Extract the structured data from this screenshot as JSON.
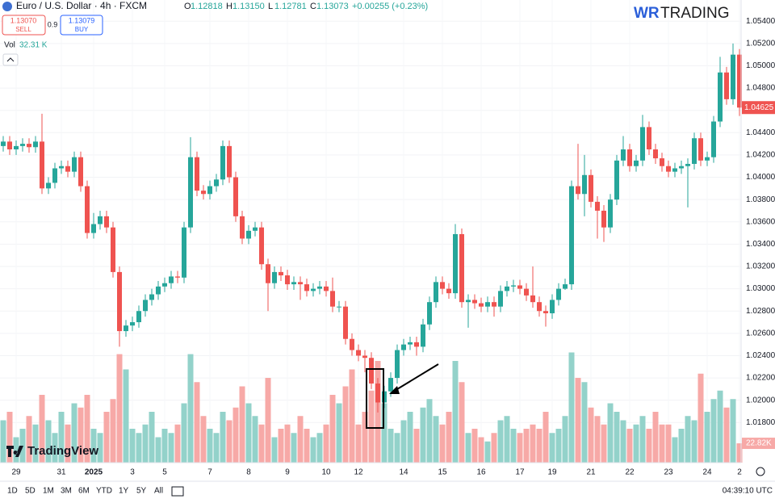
{
  "header": {
    "symbol": "Euro / U.S. Dollar · 4h · FXCM",
    "ohlc_keys": [
      "O",
      "H",
      "L",
      "C"
    ],
    "ohlc_values": [
      "1.12818",
      "1.13150",
      "1.12781",
      "1.13073"
    ],
    "change": "+0.00255 (+0.23%)",
    "sell_price": "1.13070",
    "sell": "SELL",
    "spread": "0.9",
    "buy_price": "1.13079",
    "buy": "BUY",
    "vol_name": "Vol",
    "vol_value": "32.31 K",
    "logo_a": "WR",
    "logo_b": "TRADING",
    "watermark": "TradingView"
  },
  "toolbar": {
    "ranges": [
      "1D",
      "5D",
      "1M",
      "3M",
      "6M",
      "YTD",
      "1Y",
      "5Y",
      "All"
    ],
    "clock": "04:39:10 UTC"
  },
  "chart_data": {
    "type": "candlestick",
    "categories": [
      null,
      null,
      "29",
      null,
      null,
      null,
      null,
      null,
      null,
      "31",
      null,
      null,
      null,
      null,
      "2025",
      null,
      null,
      null,
      null,
      null,
      "3",
      null,
      null,
      null,
      null,
      "5",
      null,
      null,
      null,
      null,
      null,
      null,
      "7",
      null,
      null,
      null,
      null,
      null,
      "8",
      null,
      null,
      null,
      null,
      null,
      "9",
      null,
      null,
      null,
      null,
      null,
      "10",
      null,
      null,
      null,
      null,
      "12",
      null,
      null,
      null,
      null,
      null,
      null,
      "14",
      null,
      null,
      null,
      null,
      null,
      "15",
      null,
      null,
      null,
      null,
      null,
      "16",
      null,
      null,
      null,
      null,
      null,
      "17",
      null,
      null,
      null,
      null,
      "19",
      null,
      null,
      null,
      null,
      null,
      "21",
      null,
      null,
      null,
      null,
      null,
      "22",
      null,
      null,
      null,
      null,
      null,
      "23",
      null,
      null,
      null,
      null,
      null,
      "24",
      null,
      null,
      null,
      null,
      "2"
    ],
    "open": [
      1.0428,
      1.0432,
      1.0425,
      1.0428,
      1.043,
      1.0427,
      1.0432,
      1.039,
      1.0395,
      1.0408,
      1.041,
      1.0405,
      1.0418,
      1.0392,
      1.035,
      1.0358,
      1.0365,
      1.0355,
      1.0315,
      1.0262,
      1.0267,
      1.027,
      1.028,
      1.029,
      1.0295,
      1.0302,
      1.0305,
      1.0311,
      1.031,
      1.0355,
      1.0418,
      1.0388,
      1.0385,
      1.0392,
      1.0398,
      1.0428,
      1.04,
      1.0365,
      1.0345,
      1.0352,
      1.0355,
      1.0322,
      1.0305,
      1.0315,
      1.0312,
      1.0304,
      1.0306,
      1.0304,
      1.0298,
      1.03,
      1.0302,
      1.0298,
      1.0284,
      1.0284,
      1.0255,
      1.0245,
      1.024,
      1.0238,
      1.0215,
      1.0198,
      1.0208,
      1.022,
      1.0245,
      1.025,
      1.0252,
      1.0248,
      1.0268,
      1.0288,
      1.0306,
      1.03,
      1.0296,
      1.0349,
      1.0288,
      1.029,
      1.0287,
      1.0284,
      1.0288,
      1.0284,
      1.0298,
      1.0302,
      1.0303,
      1.03,
      1.0294,
      1.0288,
      1.028,
      1.0278,
      1.029,
      1.03,
      1.0304,
      1.0392,
      1.0385,
      1.0402,
      1.0378,
      1.037,
      1.0355,
      1.038,
      1.0415,
      1.0425,
      1.041,
      1.0415,
      1.0445,
      1.0425,
      1.0417,
      1.041,
      1.0405,
      1.0408,
      1.041,
      1.0412,
      1.0435,
      1.0415,
      1.0418,
      1.045,
      1.0494,
      1.047,
      1.051
    ],
    "high": [
      1.0437,
      1.0437,
      1.0433,
      1.0435,
      1.0435,
      1.0437,
      1.0457,
      1.04,
      1.0413,
      1.0415,
      1.0415,
      1.0423,
      1.0423,
      1.0397,
      1.0368,
      1.037,
      1.037,
      1.036,
      1.032,
      1.0272,
      1.0275,
      1.0285,
      1.0295,
      1.03,
      1.0307,
      1.031,
      1.0316,
      1.0316,
      1.036,
      1.0436,
      1.0423,
      1.0393,
      1.0397,
      1.0403,
      1.0433,
      1.0433,
      1.0405,
      1.037,
      1.0357,
      1.036,
      1.036,
      1.0327,
      1.032,
      1.032,
      1.0317,
      1.0311,
      1.0311,
      1.0309,
      1.0305,
      1.0307,
      1.0307,
      1.031,
      1.0289,
      1.0289,
      1.026,
      1.025,
      1.0245,
      1.0243,
      1.022,
      1.0213,
      1.0225,
      1.025,
      1.0255,
      1.0257,
      1.0257,
      1.0273,
      1.0293,
      1.0311,
      1.0311,
      1.0305,
      1.0358,
      1.0354,
      1.0295,
      1.0295,
      1.0292,
      1.0293,
      1.0293,
      1.0303,
      1.0307,
      1.0308,
      1.0308,
      1.0305,
      1.032,
      1.0293,
      1.0285,
      1.0295,
      1.0305,
      1.0309,
      1.0397,
      1.043,
      1.042,
      1.0407,
      1.0383,
      1.0375,
      1.0385,
      1.042,
      1.0437,
      1.043,
      1.042,
      1.0456,
      1.045,
      1.043,
      1.0422,
      1.0415,
      1.0413,
      1.0415,
      1.0417,
      1.044,
      1.044,
      1.0423,
      1.0455,
      1.0508,
      1.0499,
      1.052,
      1.0515
    ],
    "low": [
      1.0423,
      1.042,
      1.042,
      1.0423,
      1.0422,
      1.0422,
      1.0385,
      1.0385,
      1.039,
      1.0403,
      1.04,
      1.04,
      1.0387,
      1.0345,
      1.0345,
      1.0353,
      1.035,
      1.031,
      1.0248,
      1.0257,
      1.0262,
      1.0265,
      1.0275,
      1.0285,
      1.029,
      1.0297,
      1.03,
      1.0305,
      1.0305,
      1.035,
      1.0383,
      1.038,
      1.038,
      1.0387,
      1.0393,
      1.0395,
      1.036,
      1.034,
      1.034,
      1.0347,
      1.0317,
      1.028,
      1.03,
      1.0307,
      1.0299,
      1.0299,
      1.029,
      1.0293,
      1.0293,
      1.0295,
      1.0293,
      1.0279,
      1.0279,
      1.025,
      1.024,
      1.0235,
      1.0225,
      1.021,
      1.0189,
      1.0193,
      1.0203,
      1.0215,
      1.024,
      1.0245,
      1.024,
      1.0243,
      1.0263,
      1.0283,
      1.0295,
      1.0291,
      1.0291,
      1.0283,
      1.0265,
      1.0282,
      1.0279,
      1.0279,
      1.0275,
      1.0279,
      1.0293,
      1.0297,
      1.0295,
      1.0289,
      1.0283,
      1.0275,
      1.0266,
      1.0273,
      1.0285,
      1.0299,
      1.0299,
      1.038,
      1.0365,
      1.0373,
      1.0345,
      1.0342,
      1.035,
      1.0375,
      1.041,
      1.0405,
      1.0405,
      1.041,
      1.042,
      1.0412,
      1.0405,
      1.04,
      1.04,
      1.0403,
      1.0373,
      1.0407,
      1.041,
      1.041,
      1.0413,
      1.0445,
      1.0465,
      1.0465,
      1.0455
    ],
    "close": [
      1.0432,
      1.0425,
      1.0428,
      1.043,
      1.0427,
      1.0432,
      1.039,
      1.0395,
      1.0408,
      1.041,
      1.0405,
      1.0418,
      1.0392,
      1.035,
      1.0358,
      1.0365,
      1.0355,
      1.0315,
      1.0262,
      1.0267,
      1.027,
      1.028,
      1.029,
      1.0295,
      1.0302,
      1.0305,
      1.0311,
      1.031,
      1.0355,
      1.0418,
      1.0388,
      1.0385,
      1.0392,
      1.0398,
      1.0428,
      1.04,
      1.0365,
      1.0345,
      1.0352,
      1.0355,
      1.0322,
      1.0305,
      1.0315,
      1.0312,
      1.0304,
      1.0306,
      1.0304,
      1.0298,
      1.03,
      1.0302,
      1.0298,
      1.0284,
      1.0284,
      1.0255,
      1.0245,
      1.024,
      1.0238,
      1.0215,
      1.0198,
      1.0208,
      1.022,
      1.0245,
      1.025,
      1.0252,
      1.0248,
      1.0268,
      1.0288,
      1.0306,
      1.03,
      1.0296,
      1.0349,
      1.0288,
      1.029,
      1.0287,
      1.0284,
      1.0288,
      1.0284,
      1.0298,
      1.0302,
      1.0303,
      1.03,
      1.0294,
      1.0288,
      1.028,
      1.0278,
      1.029,
      1.03,
      1.0304,
      1.0392,
      1.0385,
      1.0402,
      1.0378,
      1.037,
      1.0355,
      1.038,
      1.0415,
      1.0425,
      1.041,
      1.0415,
      1.0445,
      1.0425,
      1.0417,
      1.041,
      1.0405,
      1.0408,
      1.041,
      1.0412,
      1.0435,
      1.0415,
      1.0418,
      1.045,
      1.0494,
      1.047,
      1.051,
      1.04625
    ],
    "volume": [
      50,
      60,
      30,
      40,
      55,
      45,
      80,
      50,
      35,
      60,
      45,
      70,
      65,
      80,
      40,
      35,
      60,
      75,
      128,
      110,
      40,
      35,
      45,
      60,
      30,
      40,
      35,
      45,
      70,
      128,
      95,
      55,
      40,
      35,
      60,
      50,
      65,
      90,
      70,
      55,
      45,
      100,
      30,
      40,
      45,
      35,
      55,
      40,
      30,
      35,
      45,
      80,
      70,
      90,
      110,
      45,
      60,
      85,
      120,
      70,
      40,
      35,
      50,
      60,
      40,
      65,
      75,
      55,
      45,
      60,
      120,
      95,
      35,
      40,
      30,
      25,
      35,
      50,
      55,
      40,
      35,
      40,
      45,
      40,
      60,
      35,
      40,
      55,
      130,
      100,
      95,
      65,
      55,
      45,
      70,
      60,
      50,
      40,
      45,
      55,
      40,
      60,
      45,
      45,
      30,
      40,
      55,
      50,
      105,
      60,
      75,
      85,
      65,
      75,
      22.82
    ],
    "volume_last_label": "22.82K",
    "ylim": [
      1.0144,
      1.0559
    ],
    "volume_ylim": [
      0,
      240
    ],
    "yticks": [
      {
        "value": 1.054,
        "label": "1.05400"
      },
      {
        "value": 1.052,
        "label": "1.05200"
      },
      {
        "value": 1.05,
        "label": "1.05000"
      },
      {
        "value": 1.048,
        "label": "1.04800"
      },
      {
        "value": 1.046,
        "label": "1.04600"
      },
      {
        "value": 1.044,
        "label": "1.04400"
      },
      {
        "value": 1.042,
        "label": "1.04200"
      },
      {
        "value": 1.04,
        "label": "1.04000"
      },
      {
        "value": 1.038,
        "label": "1.03800"
      },
      {
        "value": 1.036,
        "label": "1.03600"
      },
      {
        "value": 1.034,
        "label": "1.03400"
      },
      {
        "value": 1.032,
        "label": "1.03200"
      },
      {
        "value": 1.03,
        "label": "1.03000"
      },
      {
        "value": 1.028,
        "label": "1.02800"
      },
      {
        "value": 1.026,
        "label": "1.02600"
      },
      {
        "value": 1.024,
        "label": "1.02400"
      },
      {
        "value": 1.022,
        "label": "1.02200"
      },
      {
        "value": 1.02,
        "label": "1.02000"
      },
      {
        "value": 1.018,
        "label": "1.01800"
      }
    ],
    "grid": true,
    "up_color": "#26a69a",
    "down_color": "#ef5350",
    "volume_up_color": "#93d2ca",
    "volume_down_color": "#f7a9a7"
  }
}
